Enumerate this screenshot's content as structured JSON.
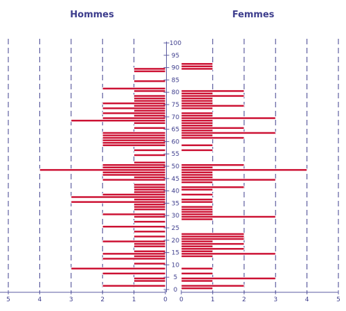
{
  "chart_data": {
    "type": "bar",
    "orientation": "horizontal",
    "layout": "population-pyramid",
    "bar_color": "#cc1133",
    "axis_color": "#3c3c8c",
    "grid": true,
    "series": [
      {
        "name": "Hommes",
        "side": "left",
        "values": [
          {
            "age": 1,
            "count": 2
          },
          {
            "age": 3,
            "count": 1
          },
          {
            "age": 4,
            "count": 1
          },
          {
            "age": 6,
            "count": 2
          },
          {
            "age": 8,
            "count": 3
          },
          {
            "age": 10,
            "count": 1
          },
          {
            "age": 12,
            "count": 2
          },
          {
            "age": 13,
            "count": 1
          },
          {
            "age": 14,
            "count": 2
          },
          {
            "age": 15,
            "count": 1
          },
          {
            "age": 17,
            "count": 1
          },
          {
            "age": 18,
            "count": 1
          },
          {
            "age": 19,
            "count": 2
          },
          {
            "age": 21,
            "count": 1
          },
          {
            "age": 23,
            "count": 1
          },
          {
            "age": 25,
            "count": 2
          },
          {
            "age": 27,
            "count": 1
          },
          {
            "age": 29,
            "count": 1
          },
          {
            "age": 30,
            "count": 2
          },
          {
            "age": 32,
            "count": 1
          },
          {
            "age": 33,
            "count": 1
          },
          {
            "age": 34,
            "count": 1
          },
          {
            "age": 35,
            "count": 3
          },
          {
            "age": 36,
            "count": 1
          },
          {
            "age": 37,
            "count": 3
          },
          {
            "age": 38,
            "count": 2
          },
          {
            "age": 39,
            "count": 1
          },
          {
            "age": 40,
            "count": 1
          },
          {
            "age": 41,
            "count": 1
          },
          {
            "age": 42,
            "count": 1
          },
          {
            "age": 44,
            "count": 2
          },
          {
            "age": 45,
            "count": 1
          },
          {
            "age": 46,
            "count": 2
          },
          {
            "age": 47,
            "count": 2
          },
          {
            "age": 48,
            "count": 4
          },
          {
            "age": 49,
            "count": 2
          },
          {
            "age": 50,
            "count": 2
          },
          {
            "age": 51,
            "count": 1
          },
          {
            "age": 54,
            "count": 1
          },
          {
            "age": 56,
            "count": 1
          },
          {
            "age": 58,
            "count": 2
          },
          {
            "age": 59,
            "count": 2
          },
          {
            "age": 60,
            "count": 2
          },
          {
            "age": 61,
            "count": 2
          },
          {
            "age": 62,
            "count": 2
          },
          {
            "age": 63,
            "count": 2
          },
          {
            "age": 65,
            "count": 1
          },
          {
            "age": 67,
            "count": 1
          },
          {
            "age": 68,
            "count": 3
          },
          {
            "age": 69,
            "count": 2
          },
          {
            "age": 70,
            "count": 1
          },
          {
            "age": 71,
            "count": 2
          },
          {
            "age": 72,
            "count": 1
          },
          {
            "age": 73,
            "count": 2
          },
          {
            "age": 74,
            "count": 1
          },
          {
            "age": 75,
            "count": 2
          },
          {
            "age": 76,
            "count": 1
          },
          {
            "age": 77,
            "count": 1
          },
          {
            "age": 78,
            "count": 1
          },
          {
            "age": 80,
            "count": 1
          },
          {
            "age": 81,
            "count": 2
          },
          {
            "age": 84,
            "count": 1
          },
          {
            "age": 88,
            "count": 1
          },
          {
            "age": 89,
            "count": 1
          }
        ]
      },
      {
        "name": "Femmes",
        "side": "right",
        "values": [
          {
            "age": 0,
            "count": 1
          },
          {
            "age": 1,
            "count": 2
          },
          {
            "age": 3,
            "count": 1
          },
          {
            "age": 4,
            "count": 3
          },
          {
            "age": 6,
            "count": 1
          },
          {
            "age": 8,
            "count": 1
          },
          {
            "age": 13,
            "count": 1
          },
          {
            "age": 14,
            "count": 3
          },
          {
            "age": 15,
            "count": 1
          },
          {
            "age": 16,
            "count": 2
          },
          {
            "age": 17,
            "count": 1
          },
          {
            "age": 18,
            "count": 2
          },
          {
            "age": 19,
            "count": 1
          },
          {
            "age": 20,
            "count": 2
          },
          {
            "age": 21,
            "count": 2
          },
          {
            "age": 22,
            "count": 2
          },
          {
            "age": 28,
            "count": 1
          },
          {
            "age": 29,
            "count": 3
          },
          {
            "age": 30,
            "count": 1
          },
          {
            "age": 31,
            "count": 1
          },
          {
            "age": 32,
            "count": 1
          },
          {
            "age": 33,
            "count": 1
          },
          {
            "age": 35,
            "count": 1
          },
          {
            "age": 36,
            "count": 1
          },
          {
            "age": 38,
            "count": 1
          },
          {
            "age": 40,
            "count": 1
          },
          {
            "age": 41,
            "count": 2
          },
          {
            "age": 43,
            "count": 1
          },
          {
            "age": 44,
            "count": 3
          },
          {
            "age": 45,
            "count": 1
          },
          {
            "age": 46,
            "count": 1
          },
          {
            "age": 47,
            "count": 1
          },
          {
            "age": 48,
            "count": 4
          },
          {
            "age": 49,
            "count": 1
          },
          {
            "age": 50,
            "count": 2
          },
          {
            "age": 56,
            "count": 1
          },
          {
            "age": 58,
            "count": 1
          },
          {
            "age": 61,
            "count": 2
          },
          {
            "age": 62,
            "count": 1
          },
          {
            "age": 63,
            "count": 3
          },
          {
            "age": 64,
            "count": 1
          },
          {
            "age": 65,
            "count": 2
          },
          {
            "age": 66,
            "count": 1
          },
          {
            "age": 67,
            "count": 1
          },
          {
            "age": 68,
            "count": 1
          },
          {
            "age": 69,
            "count": 3
          },
          {
            "age": 70,
            "count": 1
          },
          {
            "age": 71,
            "count": 1
          },
          {
            "age": 73,
            "count": 1
          },
          {
            "age": 74,
            "count": 2
          },
          {
            "age": 75,
            "count": 1
          },
          {
            "age": 76,
            "count": 1
          },
          {
            "age": 77,
            "count": 1
          },
          {
            "age": 78,
            "count": 2
          },
          {
            "age": 79,
            "count": 1
          },
          {
            "age": 80,
            "count": 2
          },
          {
            "age": 89,
            "count": 1
          },
          {
            "age": 90,
            "count": 1
          },
          {
            "age": 91,
            "count": 1
          }
        ]
      }
    ],
    "x_axis": {
      "range": [
        0,
        5
      ],
      "ticks": [
        "0",
        "1",
        "2",
        "3",
        "4",
        "5"
      ]
    },
    "y_axis": {
      "range": [
        0,
        100
      ],
      "ticks": [
        "0",
        "5",
        "10",
        "15",
        "20",
        "25",
        "30",
        "35",
        "40",
        "45",
        "50",
        "55",
        "60",
        "65",
        "70",
        "75",
        "80",
        "85",
        "90",
        "95",
        "100"
      ]
    }
  }
}
